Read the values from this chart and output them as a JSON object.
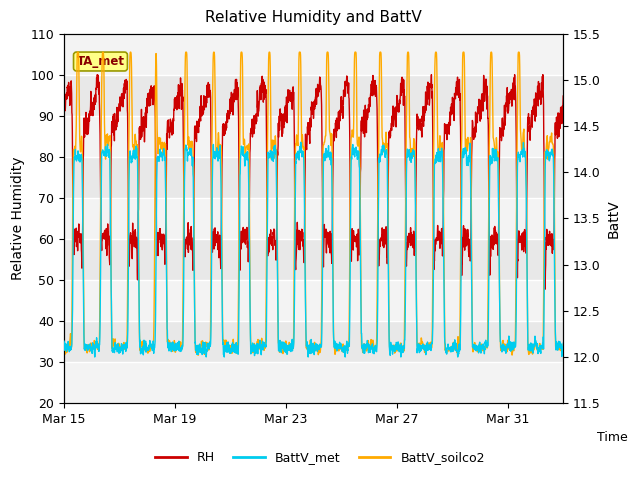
{
  "title": "Relative Humidity and BattV",
  "xlabel": "Time",
  "ylabel_left": "Relative Humidity",
  "ylabel_right": "BattV",
  "ylim_left": [
    20,
    110
  ],
  "ylim_right": [
    11.5,
    15.5
  ],
  "yticks_left": [
    20,
    30,
    40,
    50,
    60,
    70,
    80,
    90,
    100,
    110
  ],
  "yticks_right": [
    11.5,
    12.0,
    12.5,
    13.0,
    13.5,
    14.0,
    14.5,
    15.0,
    15.5
  ],
  "xtick_labels": [
    "Mar 15",
    "Mar 19",
    "Mar 23",
    "Mar 27",
    "Mar 31"
  ],
  "xtick_positions": [
    0,
    4,
    8,
    12,
    16
  ],
  "annotation_text": "TA_met",
  "color_RH": "#CC0000",
  "color_BattV_met": "#00CCEE",
  "color_BattV_soilco2": "#FFAA00",
  "bg_color": "#E8E8E8",
  "bg_band_color": "#D0D0D0",
  "line_width": 1.0,
  "total_days": 18,
  "n_points": 2160,
  "rng_seed": 7
}
